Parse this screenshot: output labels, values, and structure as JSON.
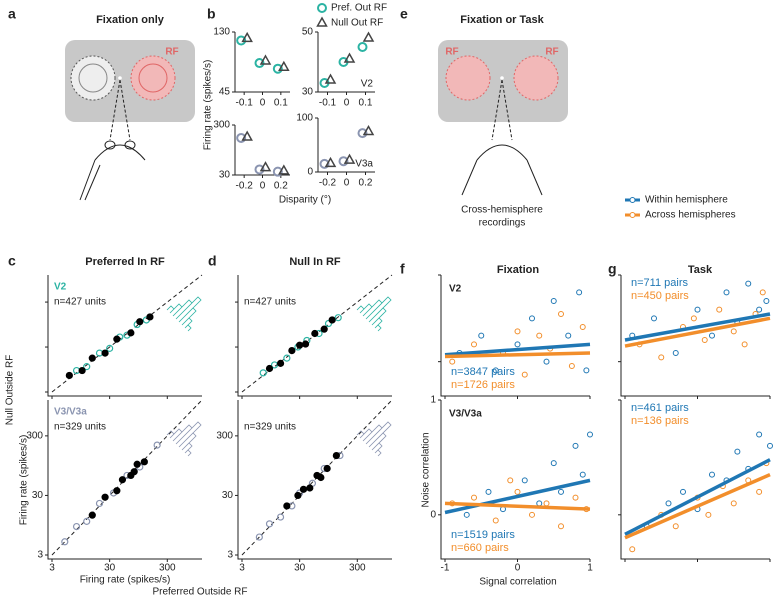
{
  "a": {
    "label": "a",
    "title": "Fixation only",
    "rf": "RF"
  },
  "b": {
    "label": "b",
    "ylabel": "Firing rate (spikes/s)",
    "xlabel": "Disparity (°)",
    "plots": [
      {
        "x": [
          -0.1,
          0,
          0.1
        ],
        "xlim": [
          -0.15,
          0.15
        ],
        "xticks": [
          -0.1,
          0,
          0.1
        ],
        "ylim": [
          45,
          130
        ],
        "yticks": [
          45,
          130
        ],
        "series": [
          {
            "name": "Pref. Out RF",
            "color": "#2bb3a3",
            "values": [
              118,
              86,
              78
            ]
          },
          {
            "name": "Null Out RF",
            "color": "#444444",
            "values": [
              121,
              89,
              80
            ]
          }
        ]
      },
      {
        "name": "V2",
        "x": [
          -0.1,
          0,
          0.1
        ],
        "xlim": [
          -0.15,
          0.15
        ],
        "xticks": [
          -0.1,
          0,
          0.1
        ],
        "ylim": [
          30,
          50
        ],
        "yticks": [
          30,
          50
        ],
        "series": [
          {
            "color": "#2bb3a3",
            "values": [
              33,
              40,
              45
            ]
          },
          {
            "color": "#444444",
            "values": [
              34,
              41,
              48
            ]
          }
        ]
      },
      {
        "x": [
          -0.2,
          0,
          0.2
        ],
        "xlim": [
          -0.3,
          0.3
        ],
        "xticks": [
          -0.2,
          0,
          0.2
        ],
        "ylim": [
          30,
          300
        ],
        "yticks": [
          30,
          300
        ],
        "series": [
          {
            "color": "#8a94b0",
            "values": [
              230,
              60,
              48
            ]
          },
          {
            "color": "#444444",
            "values": [
              235,
              70,
              52
            ]
          }
        ]
      },
      {
        "name": "V3a",
        "x": [
          -0.2,
          0,
          0.2
        ],
        "xlim": [
          -0.3,
          0.3
        ],
        "xticks": [
          -0.2,
          0,
          0.2
        ],
        "ylim": [
          0,
          100
        ],
        "yticks": [
          0,
          100
        ],
        "series": [
          {
            "color": "#8a94b0",
            "values": [
              15,
              20,
              72
            ]
          },
          {
            "color": "#444444",
            "values": [
              16,
              22,
              75
            ]
          }
        ]
      }
    ]
  },
  "c": {
    "label": "c",
    "title": "Preferred In RF",
    "ylabel": "Firing rate (spikes/s)",
    "ylabel2": "Null Outside RF",
    "xlabel": "Firing rate (spikes/s)",
    "xlabel2": "Preferred Outside RF",
    "xlim": [
      3,
      1200
    ],
    "ylim": [
      3,
      1200
    ],
    "xticks": [
      3,
      30,
      300
    ],
    "yticks": [
      3,
      30,
      300
    ],
    "plots": [
      {
        "name": "V2",
        "n": "n=427 units",
        "color": "#2bb3a3",
        "open": {
          "x": [
            8,
            12,
            20,
            30,
            45,
            60,
            90,
            130
          ],
          "values": [
            9,
            11,
            22,
            28,
            50,
            55,
            95,
            120
          ]
        },
        "filled": {
          "x": [
            6,
            10,
            15,
            25,
            40,
            70,
            100,
            150
          ],
          "values": [
            7,
            9,
            17,
            22,
            45,
            62,
            110,
            140
          ]
        }
      },
      {
        "name": "V3/V3a",
        "n": "n=329 units",
        "color": "#8a94b0",
        "open": {
          "x": [
            5,
            8,
            12,
            20,
            35,
            60,
            100,
            200
          ],
          "values": [
            5,
            9,
            11,
            22,
            33,
            65,
            90,
            210
          ]
        },
        "filled": {
          "x": [
            15,
            25,
            40,
            50,
            70,
            90,
            120,
            80
          ],
          "values": [
            14,
            28,
            36,
            55,
            65,
            100,
            110,
            75
          ]
        }
      }
    ]
  },
  "d": {
    "label": "d",
    "title": "Null In RF",
    "xlim": [
      3,
      1200
    ],
    "ylim": [
      3,
      1200
    ],
    "xticks": [
      3,
      30,
      300
    ],
    "yticks": [
      3,
      30,
      300
    ],
    "plots": [
      {
        "n": "n=427 units",
        "color": "#2bb3a3",
        "open": {
          "x": [
            7,
            11,
            18,
            28,
            40,
            65,
            95,
            140
          ],
          "values": [
            8,
            12,
            17,
            30,
            42,
            60,
            100,
            135
          ]
        },
        "filled": {
          "x": [
            9,
            14,
            22,
            30,
            38,
            55,
            80,
            110
          ],
          "values": [
            10,
            13,
            25,
            33,
            35,
            60,
            75,
            120
          ]
        }
      },
      {
        "n": "n=329 units",
        "color": "#8a94b0",
        "open": {
          "x": [
            6,
            9,
            14,
            22,
            30,
            50,
            80,
            150
          ],
          "values": [
            6,
            10,
            13,
            20,
            33,
            48,
            85,
            140
          ]
        },
        "filled": {
          "x": [
            18,
            28,
            45,
            60,
            90,
            130,
            35,
            70
          ],
          "values": [
            20,
            30,
            40,
            65,
            85,
            140,
            38,
            60
          ]
        }
      }
    ]
  },
  "e": {
    "label": "e",
    "title": "Fixation or Task",
    "rf": [
      "RF",
      "RF"
    ],
    "caption": [
      "Cross-hemisphere",
      "recordings"
    ]
  },
  "legend": [
    {
      "name": "Within hemisphere",
      "color": "#1f77b4"
    },
    {
      "name": "Across hemispheres",
      "color": "#f28e2b"
    }
  ],
  "f": {
    "label": "f",
    "title": "Fixation",
    "xlabel": "Signal correlation",
    "ylabel": "Noise correlation",
    "xlim": [
      -1,
      1
    ],
    "ylim": [
      -0.35,
      1
    ],
    "xticks": [
      -1,
      0,
      1
    ],
    "yticks": [
      0,
      1
    ],
    "plots": [
      {
        "name": "V2",
        "series": [
          {
            "n": "n=3847 pairs",
            "fit": [
              0.08,
              0.2
            ],
            "x": [
              -0.8,
              -0.5,
              -0.3,
              0,
              0.2,
              0.4,
              0.5,
              0.7,
              0.85,
              0.95
            ],
            "values": [
              0.1,
              0.3,
              -0.1,
              0.2,
              0.5,
              0,
              0.7,
              0.3,
              0.8,
              -0.1
            ]
          },
          {
            "n": "n=1726 pairs",
            "fit": [
              0.06,
              0.1
            ],
            "x": [
              -0.9,
              -0.6,
              -0.2,
              0.1,
              0.3,
              0.45,
              0.6,
              0.75,
              0.9,
              0
            ],
            "values": [
              0,
              0.2,
              0.1,
              -0.15,
              0.3,
              0.15,
              0.55,
              -0.05,
              0.4,
              0.35
            ]
          }
        ]
      },
      {
        "name": "V3/V3a",
        "series": [
          {
            "n": "n=1519 pairs",
            "fit": [
              0.02,
              0.3
            ],
            "x": [
              -0.7,
              -0.4,
              -0.2,
              0.1,
              0.3,
              0.5,
              0.6,
              0.8,
              0.9,
              1
            ],
            "values": [
              0,
              0.2,
              0.05,
              0.3,
              0.1,
              0.45,
              0.2,
              0.6,
              0.35,
              0.7
            ]
          },
          {
            "n": "n=660 pairs",
            "fit": [
              0.1,
              0.05
            ],
            "x": [
              -0.9,
              -0.6,
              -0.3,
              0,
              0.2,
              0.4,
              0.6,
              0.8,
              0.95,
              -0.1
            ],
            "values": [
              0.1,
              0.15,
              -0.05,
              0.2,
              0,
              0.1,
              -0.1,
              0.15,
              0.05,
              0.3
            ]
          }
        ]
      }
    ]
  },
  "g": {
    "label": "g",
    "title": "Task",
    "xlim": [
      -1,
      1
    ],
    "ylim": [
      -0.35,
      1
    ],
    "xticks": [
      -1,
      0,
      1
    ],
    "yticks": [
      0,
      1
    ],
    "plots": [
      {
        "series": [
          {
            "n": "n=711 pairs",
            "fit": [
              0.25,
              0.55
            ],
            "x": [
              -0.9,
              -0.6,
              -0.3,
              0,
              0.2,
              0.4,
              0.55,
              0.7,
              0.85,
              0.95
            ],
            "values": [
              0.3,
              0.5,
              0.1,
              0.6,
              0.3,
              0.8,
              0.45,
              0.9,
              0.6,
              0.7
            ]
          },
          {
            "n": "n=450 pairs",
            "fit": [
              0.18,
              0.5
            ],
            "x": [
              -0.8,
              -0.5,
              -0.2,
              0.1,
              0.3,
              0.5,
              0.65,
              0.8,
              0.9,
              -0.05
            ],
            "values": [
              0.2,
              0.05,
              0.4,
              0.25,
              0.6,
              0.35,
              0.2,
              0.55,
              0.8,
              0.5
            ]
          }
        ]
      },
      {
        "series": [
          {
            "n": "n=461 pairs",
            "fit": [
              -0.17,
              0.48
            ],
            "x": [
              -0.7,
              -0.4,
              -0.2,
              0,
              0.2,
              0.4,
              0.55,
              0.7,
              0.85,
              1
            ],
            "values": [
              -0.1,
              0.1,
              0.2,
              0.05,
              0.35,
              0.3,
              0.55,
              0.4,
              0.7,
              0.6
            ]
          },
          {
            "n": "n=136 pairs",
            "fit": [
              -0.2,
              0.35
            ],
            "x": [
              -0.9,
              -0.5,
              -0.3,
              0,
              0.15,
              0.35,
              0.5,
              0.7,
              0.85,
              0.95
            ],
            "values": [
              -0.3,
              0,
              -0.1,
              0.15,
              0,
              0.25,
              0.1,
              0.3,
              0.2,
              0.45
            ]
          }
        ]
      }
    ]
  }
}
